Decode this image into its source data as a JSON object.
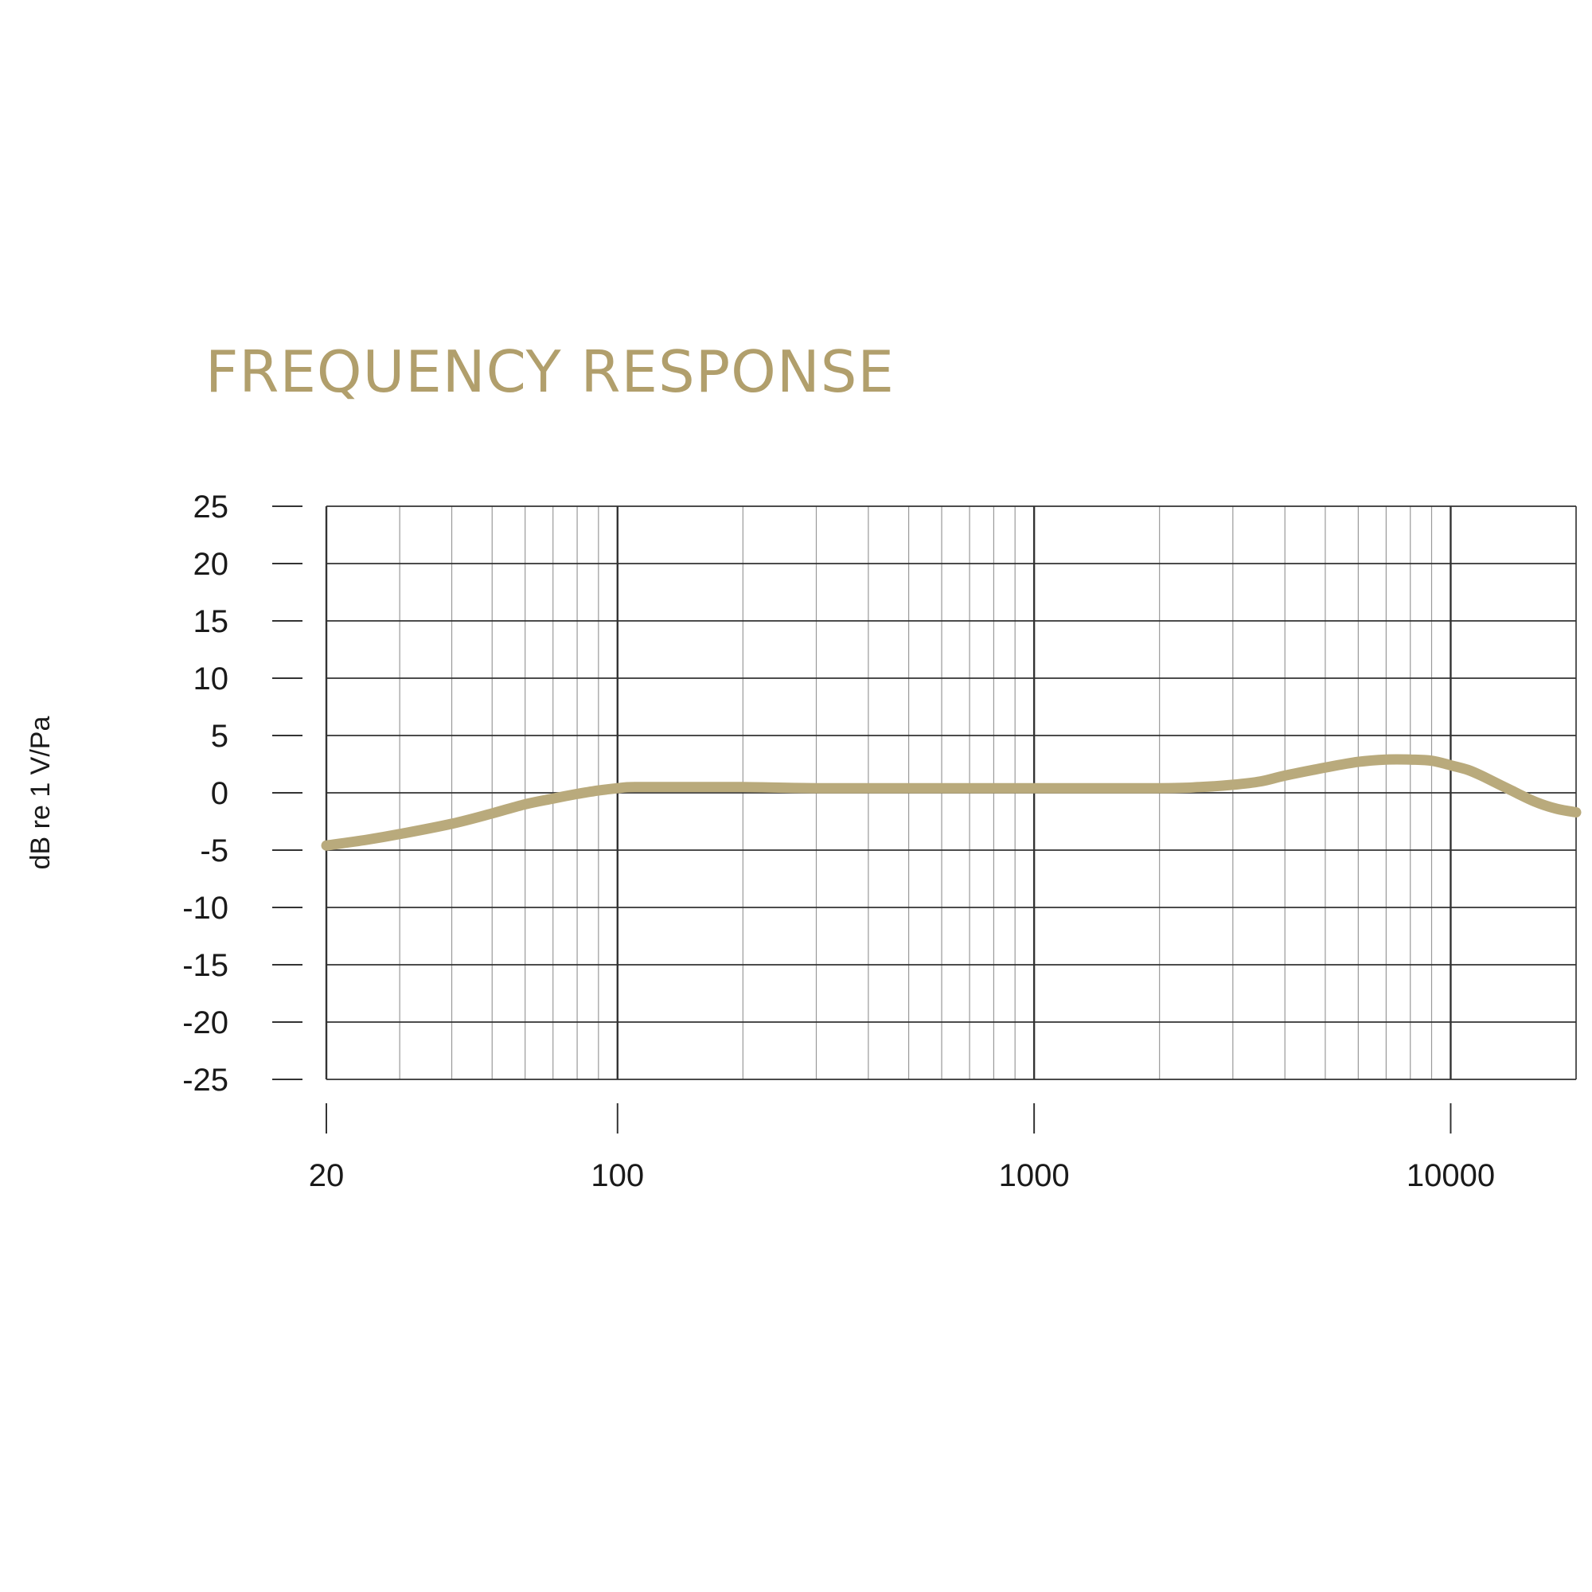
{
  "chart_data": {
    "type": "line",
    "title": "FREQUENCY RESPONSE",
    "ylabel": "dB re 1 V/Pa",
    "xlabel": "",
    "x_scale": "log",
    "xlim": [
      20,
      20000
    ],
    "ylim": [
      -25,
      25
    ],
    "x_tick_labels": [
      "20",
      "100",
      "1000",
      "10000"
    ],
    "x_ticks": [
      20,
      100,
      1000,
      10000
    ],
    "y_ticks": [
      25,
      20,
      15,
      10,
      5,
      0,
      -5,
      -10,
      -15,
      -20,
      -25
    ],
    "y_tick_labels": [
      "25",
      "20",
      "15",
      "10",
      "5",
      "0",
      "-5",
      "-10",
      "-15",
      "-20",
      "-25"
    ],
    "grid": true,
    "series": [
      {
        "color": "#b9aa7c",
        "points": [
          [
            20,
            -4.6
          ],
          [
            25,
            -4.1
          ],
          [
            30,
            -3.6
          ],
          [
            40,
            -2.7
          ],
          [
            50,
            -1.8
          ],
          [
            60,
            -1.0
          ],
          [
            70,
            -0.5
          ],
          [
            80,
            -0.1
          ],
          [
            90,
            0.2
          ],
          [
            100,
            0.4
          ],
          [
            110,
            0.5
          ],
          [
            150,
            0.5
          ],
          [
            200,
            0.5
          ],
          [
            300,
            0.4
          ],
          [
            500,
            0.4
          ],
          [
            1000,
            0.4
          ],
          [
            2000,
            0.4
          ],
          [
            2500,
            0.5
          ],
          [
            3000,
            0.7
          ],
          [
            3500,
            1.0
          ],
          [
            4000,
            1.5
          ],
          [
            5000,
            2.2
          ],
          [
            6000,
            2.7
          ],
          [
            7000,
            2.9
          ],
          [
            8000,
            2.9
          ],
          [
            9000,
            2.8
          ],
          [
            10000,
            2.4
          ],
          [
            11000,
            2.0
          ],
          [
            12000,
            1.4
          ],
          [
            14000,
            0.2
          ],
          [
            16000,
            -0.8
          ],
          [
            18000,
            -1.4
          ],
          [
            20000,
            -1.7
          ]
        ]
      }
    ],
    "grid_color": "#999999",
    "major_grid_color": "#333333"
  }
}
